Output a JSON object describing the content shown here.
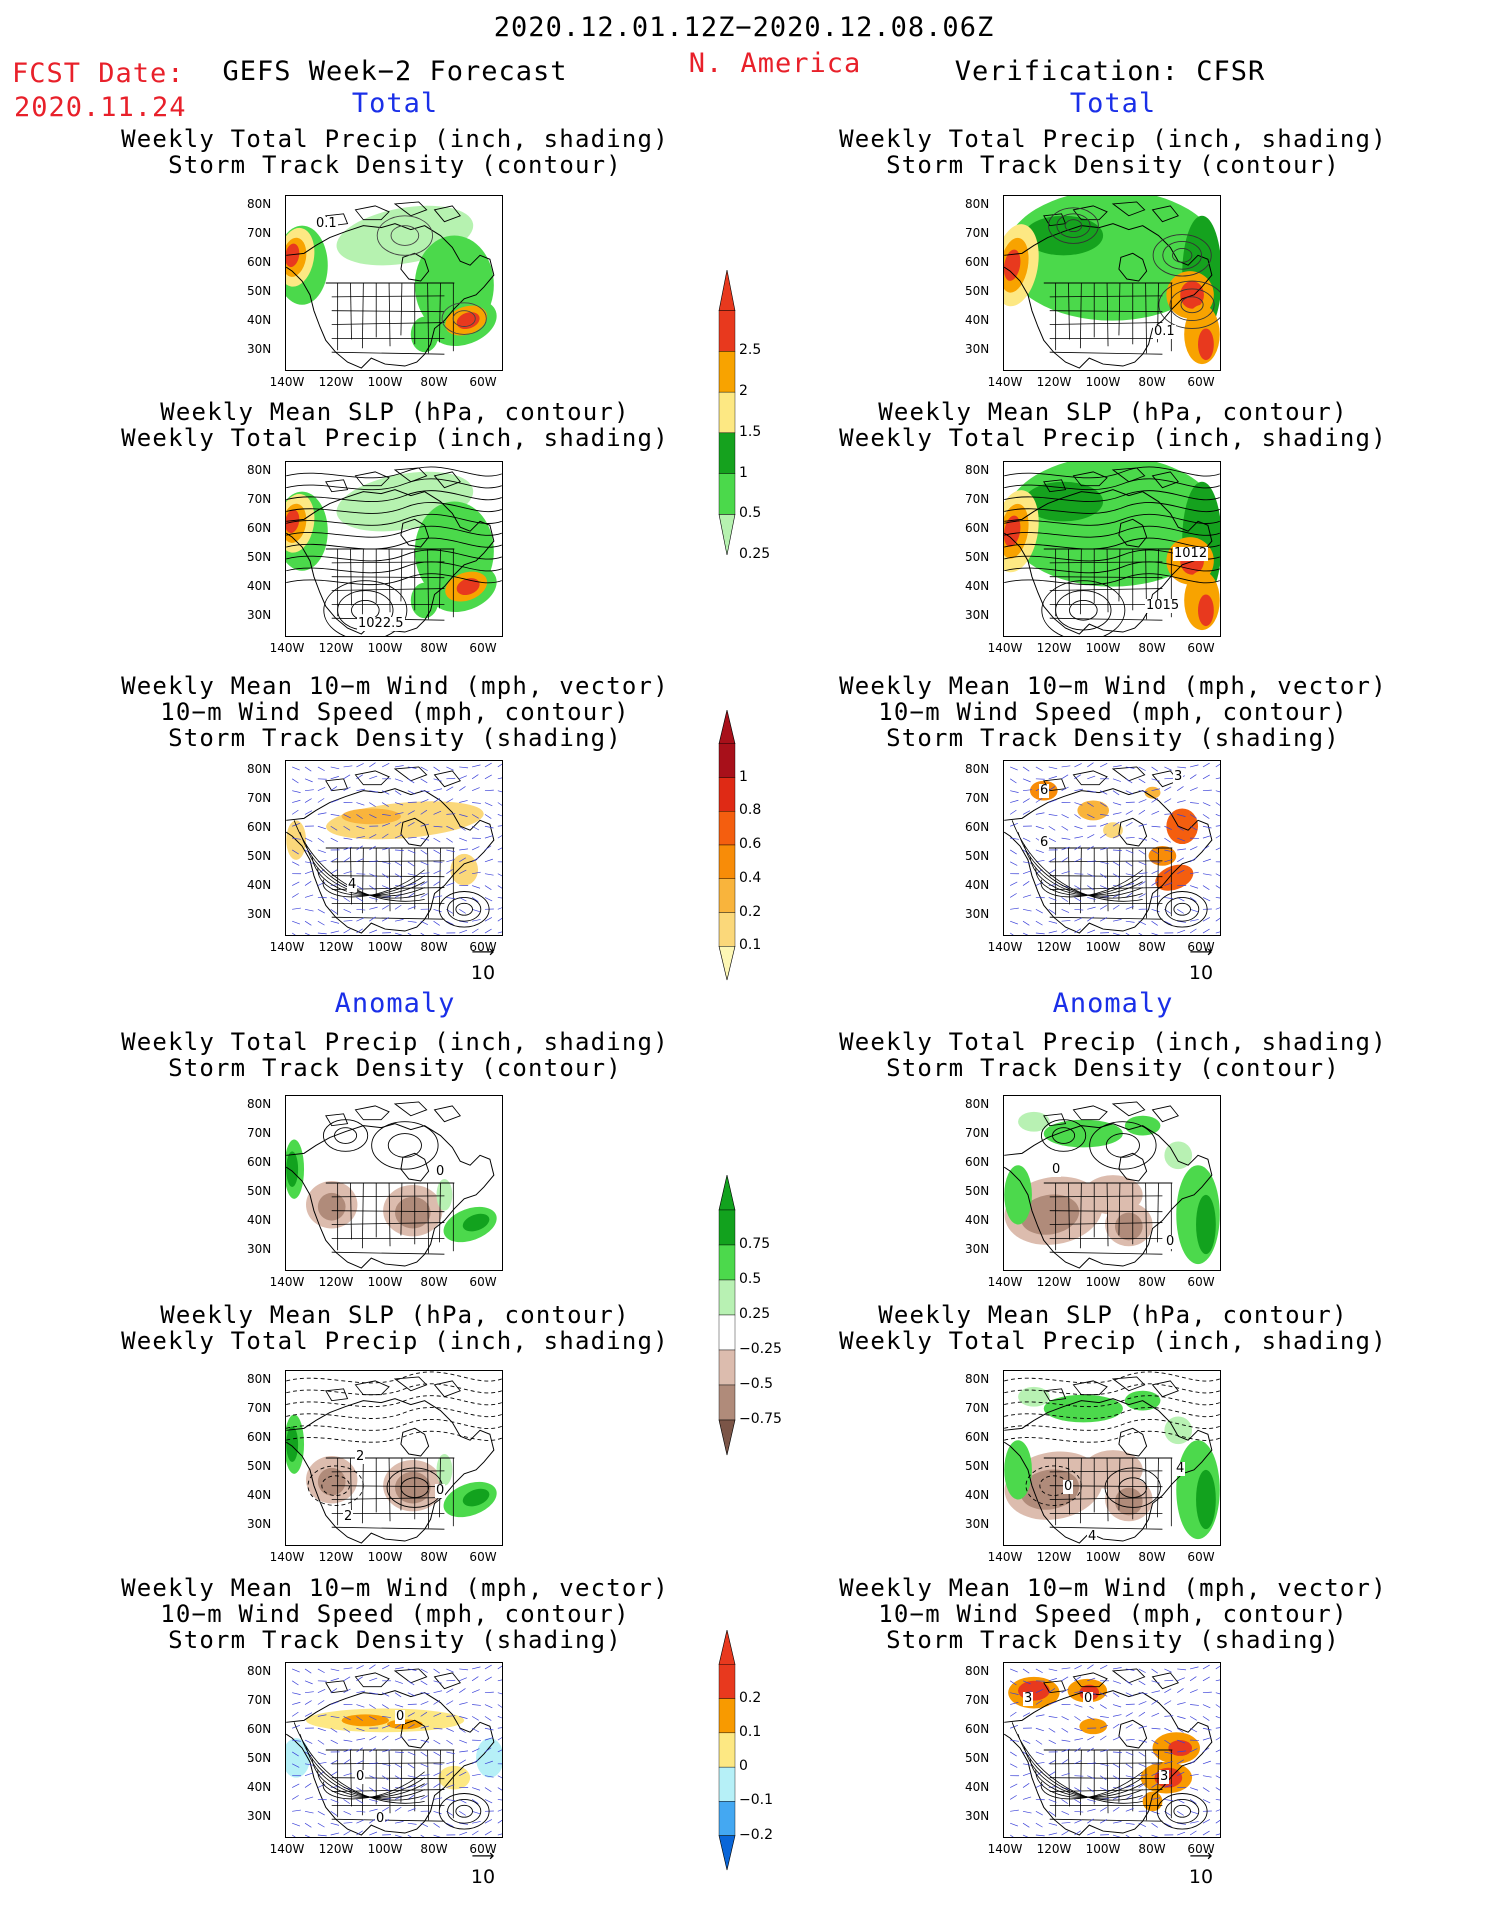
{
  "header": {
    "period": "2020.12.01.12Z−2020.12.08.06Z",
    "region": "N. America",
    "fcst_label": "FCST Date:",
    "fcst_date": "2020.11.24",
    "left_title": "GEFS Week−2 Forecast",
    "right_title": "Verification: CFSR"
  },
  "sections": {
    "total": "Total",
    "anomaly": "Anomaly"
  },
  "titles": {
    "precip_track": [
      "Weekly Total Precip (inch, shading)",
      "Storm Track Density (contour)"
    ],
    "slp_precip": [
      "Weekly Mean SLP (hPa, contour)",
      "Weekly Total Precip (inch, shading)"
    ],
    "wind_track": [
      "Weekly Mean 10−m Wind (mph, vector)",
      "10−m Wind Speed (mph, contour)",
      "Storm Track Density (shading)"
    ]
  },
  "axes": {
    "lat": [
      "80N",
      "70N",
      "60N",
      "50N",
      "40N",
      "30N"
    ],
    "lon": [
      "140W",
      "120W",
      "100W",
      "80W",
      "60W"
    ]
  },
  "vector_ref": "10",
  "contour_labels": {
    "f_precip": [
      "0.1"
    ],
    "v_precip": [
      "0.1"
    ],
    "f_slp": [
      "1022.5"
    ],
    "v_slp": [
      "1012",
      "1015"
    ],
    "f_wind": [
      "4"
    ],
    "v_wind": [
      "6",
      "6",
      "3"
    ],
    "fa_precip": [
      "0"
    ],
    "va_precip": [
      "0",
      "0"
    ],
    "fa_slp": [
      "2",
      "0",
      "2"
    ],
    "va_slp": [
      "0",
      "4",
      "4"
    ],
    "fa_wind": [
      "0",
      "0",
      "0"
    ],
    "va_wind": [
      "3",
      "0",
      "3"
    ]
  },
  "colorbars": {
    "precip": {
      "labels": [
        "2.5",
        "2",
        "1.5",
        "1",
        "0.5",
        "0.25"
      ],
      "colors": [
        "#e8391e",
        "#f8a300",
        "#fde883",
        "#15a21e",
        "#4bd94b",
        "#b6f2b0"
      ]
    },
    "track": {
      "labels": [
        "1",
        "0.8",
        "0.6",
        "0.4",
        "0.2",
        "0.1"
      ],
      "colors": [
        "#a8101a",
        "#df2a15",
        "#f45e0f",
        "#f88c08",
        "#f9b43c",
        "#fbd87a",
        "#fdf7b5"
      ]
    },
    "precip_anom": {
      "labels": [
        "0.75",
        "0.5",
        "0.25",
        "−0.25",
        "−0.5",
        "−0.75"
      ],
      "colors": [
        "#12a21e",
        "#4cd94c",
        "#b8f1b3",
        "#ffffff",
        "#dcbcae",
        "#b08b7a",
        "#7b5547"
      ]
    },
    "track_anom": {
      "labels": [
        "0.2",
        "0.1",
        "0",
        "−0.1",
        "−0.2"
      ],
      "colors": [
        "#e8391e",
        "#f89a00",
        "#fde883",
        "#b6f0f7",
        "#44a8f2",
        "#0a66d8"
      ]
    }
  }
}
